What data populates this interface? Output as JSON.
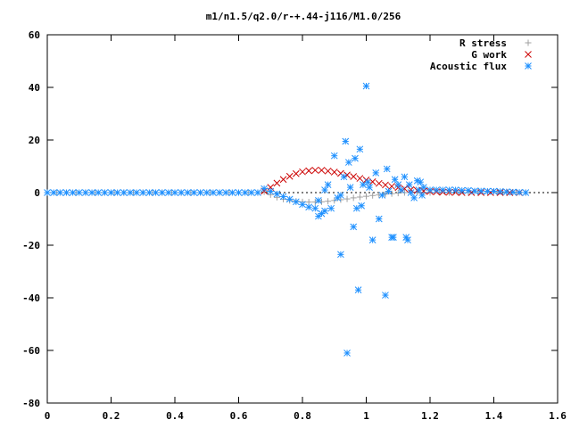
{
  "chart_data": {
    "type": "scatter",
    "title": "m1/n1.5/q2.0/r-+.44-j116/M1.0/256",
    "xlabel": "",
    "ylabel": "",
    "xlim": [
      0,
      1.6
    ],
    "ylim": [
      -80,
      60
    ],
    "xticks": [
      0,
      0.2,
      0.4,
      0.6,
      0.8,
      1,
      1.2,
      1.4,
      1.6
    ],
    "xtick_labels": [
      "0",
      "0.2",
      "0.4",
      "0.6",
      "0.8",
      "1",
      "1.2",
      "1.4",
      "1.6"
    ],
    "yticks": [
      -80,
      -60,
      -40,
      -20,
      0,
      20,
      40,
      60
    ],
    "ytick_labels": [
      "-80",
      "-60",
      "-40",
      "-20",
      "0",
      "20",
      "40",
      "60"
    ],
    "grid": false,
    "legend_position": "top-right",
    "series": [
      {
        "name": "R stress",
        "marker": "plus",
        "color": "#a0a0a0",
        "points": [
          [
            0.0,
            0
          ],
          [
            0.03,
            0
          ],
          [
            0.06,
            0
          ],
          [
            0.09,
            0
          ],
          [
            0.12,
            0
          ],
          [
            0.15,
            0
          ],
          [
            0.18,
            0
          ],
          [
            0.21,
            0
          ],
          [
            0.24,
            0
          ],
          [
            0.27,
            0
          ],
          [
            0.3,
            0
          ],
          [
            0.33,
            0
          ],
          [
            0.36,
            0
          ],
          [
            0.39,
            0
          ],
          [
            0.42,
            0
          ],
          [
            0.45,
            0
          ],
          [
            0.48,
            0
          ],
          [
            0.51,
            0
          ],
          [
            0.54,
            0
          ],
          [
            0.57,
            0
          ],
          [
            0.6,
            0
          ],
          [
            0.63,
            0
          ],
          [
            0.66,
            0
          ],
          [
            0.68,
            0.3
          ],
          [
            0.7,
            -0.8
          ],
          [
            0.72,
            -1.8
          ],
          [
            0.74,
            -2.5
          ],
          [
            0.76,
            -3.0
          ],
          [
            0.78,
            -3.3
          ],
          [
            0.8,
            -3.5
          ],
          [
            0.82,
            -3.6
          ],
          [
            0.84,
            -3.6
          ],
          [
            0.86,
            -3.5
          ],
          [
            0.88,
            -3.3
          ],
          [
            0.9,
            -3.0
          ],
          [
            0.92,
            -2.7
          ],
          [
            0.94,
            -2.4
          ],
          [
            0.96,
            -2.0
          ],
          [
            0.98,
            -1.7
          ],
          [
            1.0,
            -1.4
          ],
          [
            1.02,
            -1.1
          ],
          [
            1.04,
            -0.9
          ],
          [
            1.06,
            -0.6
          ],
          [
            1.08,
            -0.4
          ],
          [
            1.1,
            -0.2
          ],
          [
            1.12,
            0
          ],
          [
            1.14,
            0.1
          ],
          [
            1.16,
            0.2
          ],
          [
            1.18,
            0.1
          ],
          [
            1.2,
            0
          ],
          [
            1.23,
            0
          ],
          [
            1.26,
            0
          ],
          [
            1.29,
            0
          ],
          [
            1.32,
            0
          ],
          [
            1.35,
            0
          ],
          [
            1.38,
            0
          ],
          [
            1.41,
            0
          ],
          [
            1.44,
            0
          ],
          [
            1.47,
            0
          ],
          [
            1.5,
            0
          ]
        ]
      },
      {
        "name": "G work",
        "marker": "cross",
        "color": "#cc0000",
        "points": [
          [
            0.68,
            0.6
          ],
          [
            0.7,
            2.0
          ],
          [
            0.72,
            3.6
          ],
          [
            0.74,
            5.0
          ],
          [
            0.76,
            6.2
          ],
          [
            0.78,
            7.2
          ],
          [
            0.8,
            7.9
          ],
          [
            0.82,
            8.3
          ],
          [
            0.84,
            8.5
          ],
          [
            0.86,
            8.5
          ],
          [
            0.88,
            8.2
          ],
          [
            0.9,
            7.8
          ],
          [
            0.92,
            7.3
          ],
          [
            0.94,
            6.7
          ],
          [
            0.96,
            6.1
          ],
          [
            0.98,
            5.4
          ],
          [
            1.0,
            4.8
          ],
          [
            1.02,
            4.1
          ],
          [
            1.04,
            3.5
          ],
          [
            1.06,
            2.9
          ],
          [
            1.08,
            2.4
          ],
          [
            1.1,
            1.9
          ],
          [
            1.12,
            1.5
          ],
          [
            1.14,
            1.1
          ],
          [
            1.16,
            0.8
          ],
          [
            1.18,
            0.6
          ],
          [
            1.2,
            0.4
          ],
          [
            1.22,
            0.3
          ],
          [
            1.24,
            0.2
          ],
          [
            1.26,
            0.1
          ],
          [
            1.28,
            0.1
          ],
          [
            1.3,
            0
          ],
          [
            1.33,
            0
          ],
          [
            1.36,
            0
          ],
          [
            1.39,
            0
          ],
          [
            1.42,
            0
          ],
          [
            1.45,
            0
          ],
          [
            1.48,
            0
          ]
        ]
      },
      {
        "name": "Acoustic flux",
        "marker": "star",
        "color": "#1e90ff",
        "points": [
          [
            0.0,
            0
          ],
          [
            0.02,
            0
          ],
          [
            0.04,
            0
          ],
          [
            0.06,
            0
          ],
          [
            0.08,
            0
          ],
          [
            0.1,
            0
          ],
          [
            0.12,
            0
          ],
          [
            0.14,
            0
          ],
          [
            0.16,
            0
          ],
          [
            0.18,
            0
          ],
          [
            0.2,
            0
          ],
          [
            0.22,
            0
          ],
          [
            0.24,
            0
          ],
          [
            0.26,
            0
          ],
          [
            0.28,
            0
          ],
          [
            0.3,
            0
          ],
          [
            0.32,
            0
          ],
          [
            0.34,
            0
          ],
          [
            0.36,
            0
          ],
          [
            0.38,
            0
          ],
          [
            0.4,
            0
          ],
          [
            0.42,
            0
          ],
          [
            0.44,
            0
          ],
          [
            0.46,
            0
          ],
          [
            0.48,
            0
          ],
          [
            0.5,
            0
          ],
          [
            0.52,
            0
          ],
          [
            0.54,
            0
          ],
          [
            0.56,
            0
          ],
          [
            0.58,
            0
          ],
          [
            0.6,
            0
          ],
          [
            0.62,
            0
          ],
          [
            0.64,
            0
          ],
          [
            0.66,
            0
          ],
          [
            0.68,
            1.5
          ],
          [
            0.7,
            0.5
          ],
          [
            0.72,
            -0.5
          ],
          [
            0.74,
            -1.5
          ],
          [
            0.76,
            -2.5
          ],
          [
            0.78,
            -3.5
          ],
          [
            0.8,
            -4.5
          ],
          [
            0.82,
            -5.5
          ],
          [
            0.84,
            -6.0
          ],
          [
            0.85,
            -9.0
          ],
          [
            0.86,
            -8.0
          ],
          [
            0.87,
            -7.0
          ],
          [
            0.85,
            -3.0
          ],
          [
            0.87,
            1.0
          ],
          [
            0.88,
            3.0
          ],
          [
            0.89,
            -6.0
          ],
          [
            0.9,
            14.0
          ],
          [
            0.91,
            -2.0
          ],
          [
            0.92,
            -1.0
          ],
          [
            0.92,
            -23.5
          ],
          [
            0.93,
            6.0
          ],
          [
            0.935,
            19.5
          ],
          [
            0.94,
            -61.0
          ],
          [
            0.945,
            11.5
          ],
          [
            0.95,
            2.0
          ],
          [
            0.96,
            -13.0
          ],
          [
            0.965,
            13.0
          ],
          [
            0.97,
            -6.0
          ],
          [
            0.975,
            -37.0
          ],
          [
            0.98,
            16.5
          ],
          [
            0.985,
            -5.0
          ],
          [
            0.99,
            3.0
          ],
          [
            1.0,
            40.5
          ],
          [
            1.005,
            4.0
          ],
          [
            1.01,
            2.0
          ],
          [
            1.02,
            -18.0
          ],
          [
            1.03,
            7.5
          ],
          [
            1.04,
            -10.0
          ],
          [
            1.05,
            -1.0
          ],
          [
            1.06,
            -39.0
          ],
          [
            1.065,
            9.0
          ],
          [
            1.07,
            0.5
          ],
          [
            1.08,
            -17.0
          ],
          [
            1.085,
            -17.0
          ],
          [
            1.09,
            5.0
          ],
          [
            1.1,
            3.0
          ],
          [
            1.11,
            1.0
          ],
          [
            1.12,
            6.0
          ],
          [
            1.125,
            -17.0
          ],
          [
            1.13,
            -18.0
          ],
          [
            1.135,
            3.0
          ],
          [
            1.14,
            0.0
          ],
          [
            1.15,
            -2.0
          ],
          [
            1.16,
            4.5
          ],
          [
            1.165,
            1.0
          ],
          [
            1.17,
            4.0
          ],
          [
            1.175,
            -1.0
          ],
          [
            1.18,
            2.0
          ],
          [
            1.2,
            1.0
          ],
          [
            1.22,
            1.0
          ],
          [
            1.24,
            1.0
          ],
          [
            1.26,
            1.0
          ],
          [
            1.28,
            1.0
          ],
          [
            1.3,
            0.8
          ],
          [
            1.32,
            0.8
          ],
          [
            1.34,
            0.6
          ],
          [
            1.36,
            0.6
          ],
          [
            1.38,
            0.5
          ],
          [
            1.4,
            0.5
          ],
          [
            1.42,
            0.4
          ],
          [
            1.44,
            0.3
          ],
          [
            1.46,
            0.2
          ],
          [
            1.48,
            0.1
          ],
          [
            1.5,
            0
          ]
        ]
      }
    ]
  }
}
